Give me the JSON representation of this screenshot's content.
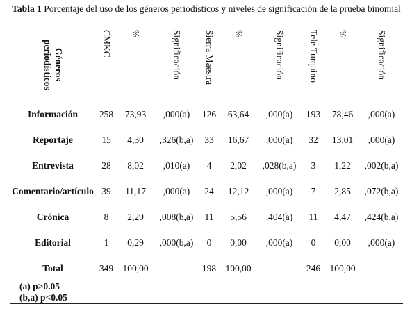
{
  "caption": {
    "label": "Tabla 1",
    "text": "Porcentaje del uso de los géneros periodísticos y niveles de significación de la prueba binomial"
  },
  "table": {
    "header": [
      "Géneros periodísticos",
      "CMKC",
      "%",
      "Significación",
      "Sierra Maestra",
      "%",
      "Significación",
      "Tele Turquino",
      "%",
      "Significación"
    ],
    "rows": [
      [
        "Información",
        "258",
        "73,93",
        ",000(a)",
        "126",
        "63,64",
        ",000(a)",
        "193",
        "78,46",
        ",000(a)"
      ],
      [
        "Reportaje",
        "15",
        "4,30",
        ",326(b,a)",
        "33",
        "16,67",
        ",000(a)",
        "32",
        "13,01",
        ",000(a)"
      ],
      [
        "Entrevista",
        "28",
        "8,02",
        ",010(a)",
        "4",
        "2,02",
        ",028(b,a)",
        "3",
        "1,22",
        ",002(b,a)"
      ],
      [
        "Comentario/artículo",
        "39",
        "11,17",
        ",000(a)",
        "24",
        "12,12",
        ",000(a)",
        "7",
        "2,85",
        ",072(b,a)"
      ],
      [
        "Crónica",
        "8",
        "2,29",
        ",008(b,a)",
        "11",
        "5,56",
        ",404(a)",
        "11",
        "4,47",
        ",424(b,a)"
      ],
      [
        "Editorial",
        "1",
        "0,29",
        ",000(b,a)",
        "0",
        "0,00",
        ",000(a)",
        "0",
        "0,00",
        ",000(a)"
      ],
      [
        "Total",
        "349",
        "100,00",
        null,
        "198",
        "100,00",
        null,
        "246",
        "100,00",
        null
      ]
    ],
    "notes": [
      "(a) p>0.05",
      "(b,a) p<0.05"
    ]
  }
}
